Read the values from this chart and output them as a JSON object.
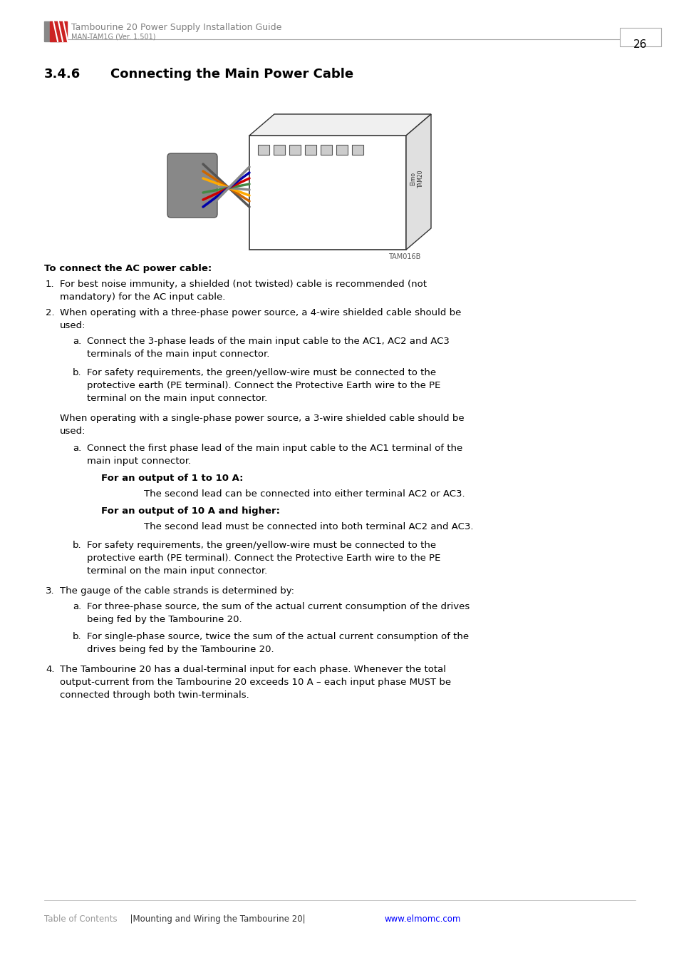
{
  "page_number": "26",
  "header_title": "Tambourine 20 Power Supply Installation Guide",
  "header_subtitle": "MAN-TAM1G (Ver. 1.501)",
  "section_number": "3.4.6",
  "section_title": "Connecting the Main Power Cable",
  "footer_toc": "Table of Contents",
  "footer_middle": "  |Mounting and Wiring the Tambourine 20|",
  "footer_url": "www.elmomc.com",
  "image_label": "TAM016B",
  "body_text": [
    {
      "type": "bold",
      "text": "To connect the AC power cable:"
    },
    {
      "type": "numbered",
      "number": "1.",
      "text": "For best noise immunity, a shielded (not twisted) cable is recommended (not mandatory) for the AC input cable."
    },
    {
      "type": "numbered",
      "number": "2.",
      "text": "When operating with a three-phase power source, a 4-wire shielded cable should be used:"
    },
    {
      "type": "lettered_a",
      "letter": "a.",
      "text": "Connect the 3-phase leads of the main input cable to the AC1, AC2 and AC3 terminals of the main input connector."
    },
    {
      "type": "lettered_b",
      "letter": "b.",
      "text": "For safety requirements, the green/yellow-wire must be connected to the protective earth (PE terminal). Connect the Protective Earth wire to the PE terminal on the main input connector."
    },
    {
      "type": "paragraph",
      "text": "When operating with a single-phase power source, a 3-wire shielded cable should be used:"
    },
    {
      "type": "lettered_a2",
      "letter": "a.",
      "text": "Connect the first phase lead of the main input cable to the AC1 terminal of the main input connector."
    },
    {
      "type": "bold_sub",
      "text": "For an output of 1 to 10 A:"
    },
    {
      "type": "indented",
      "text": "The second lead can be connected into either terminal AC2 or AC3."
    },
    {
      "type": "bold_sub",
      "text": "For an output of 10 A and higher:"
    },
    {
      "type": "indented",
      "text": "The second lead must be connected into both terminal AC2 and AC3."
    },
    {
      "type": "lettered_b2",
      "letter": "b.",
      "text": "For safety requirements, the green/yellow-wire must be connected to the protective earth (PE terminal). Connect the Protective Earth wire to the PE terminal on the main input connector."
    },
    {
      "type": "numbered",
      "number": "3.",
      "text": "The gauge of the cable strands is determined by:"
    },
    {
      "type": "lettered_a3",
      "letter": "a.",
      "text": "For three-phase source, the sum of the actual current consumption of the drives being fed by the Tambourine 20."
    },
    {
      "type": "lettered_b3",
      "letter": "b.",
      "text": "For single-phase source, twice the sum of the actual current consumption of the drives being fed by the Tambourine 20."
    },
    {
      "type": "numbered",
      "number": "4.",
      "text": "The Tambourine 20 has a dual-terminal input for each phase. Whenever the total output-current from the Tambourine 20 exceeds 10 A – each input phase MUST be connected through both twin-terminals."
    }
  ],
  "colors": {
    "background": "#ffffff",
    "header_title": "#808080",
    "header_subtitle": "#808080",
    "section_number": "#000000",
    "section_title": "#000000",
    "body_text": "#000000",
    "page_number": "#000000",
    "footer_toc": "#999999",
    "footer_middle": "#333333",
    "footer_url": "#0000ff",
    "logo_red": "#cc2222",
    "logo_gray": "#888888",
    "divider": "#aaaaaa"
  }
}
